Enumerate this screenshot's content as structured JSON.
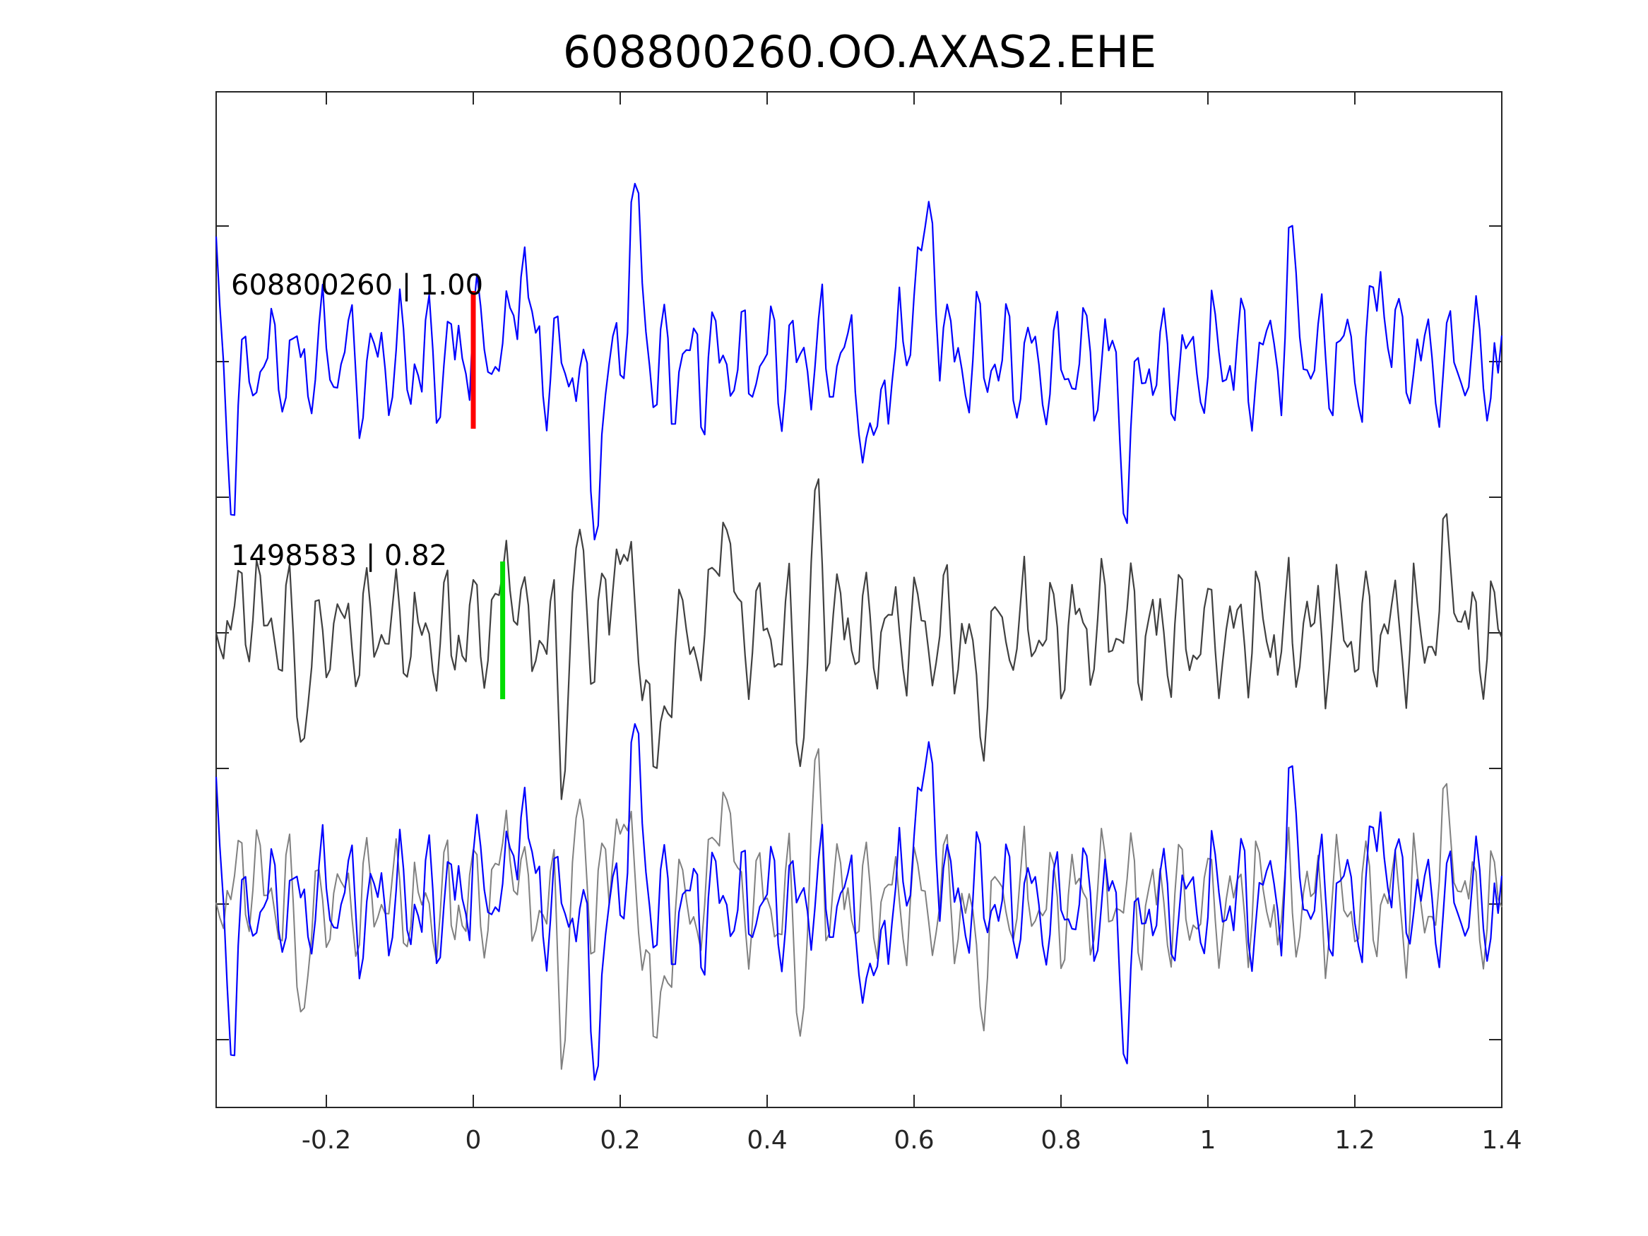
{
  "chart_data": {
    "type": "line",
    "title": "608800260.OO.AXAS2.EHE",
    "xlabel": "",
    "ylabel": "",
    "xlim": [
      -0.35,
      1.4
    ],
    "x_ticks": [
      -0.2,
      0,
      0.2,
      0.4,
      0.6,
      0.8,
      1,
      1.2,
      1.4
    ],
    "x_tick_labels": [
      "-0.2",
      "0",
      "0.2",
      "0.4",
      "0.6",
      "0.8",
      "1",
      "1.2",
      "1.4"
    ],
    "y_ticks_count": 7,
    "grid": false,
    "x_sampling": {
      "start": -0.35,
      "step": 0.005,
      "count": 351
    },
    "traces": [
      {
        "label": "608800260 | 1.00",
        "color": "#0000ff",
        "pick_time": 0.0,
        "pick_color": "#ff0000",
        "row": "top"
      },
      {
        "label": "1498583 | 0.82",
        "color": "#404040",
        "pick_time": 0.04,
        "pick_color": "#00dd00",
        "row": "middle"
      }
    ],
    "overlay": {
      "row": "bottom",
      "series_colors": [
        "#0000ff",
        "#808080"
      ]
    },
    "waveform_features": [
      {
        "series": 0,
        "peaks": [
          [
            -0.35,
            0.7
          ],
          [
            -0.33,
            -0.75
          ],
          [
            0.0,
            0.3
          ],
          [
            0.065,
            0.75
          ],
          [
            0.165,
            -1.05
          ],
          [
            0.22,
            1.15
          ],
          [
            0.26,
            -0.1
          ],
          [
            0.54,
            -0.8
          ],
          [
            0.605,
            0.75
          ],
          [
            0.625,
            0.75
          ],
          [
            0.89,
            -0.75
          ],
          [
            1.115,
            0.6
          ],
          [
            1.235,
            0.6
          ]
        ]
      },
      {
        "series": 1,
        "peaks": [
          [
            -0.35,
            0.2
          ],
          [
            -0.3,
            0.3
          ],
          [
            -0.23,
            -0.55
          ],
          [
            0.05,
            0.5
          ],
          [
            0.125,
            -0.8
          ],
          [
            0.14,
            0.65
          ],
          [
            0.2,
            0.7
          ],
          [
            0.25,
            -1.1
          ],
          [
            0.34,
            0.85
          ],
          [
            0.45,
            -0.8
          ],
          [
            0.465,
            0.85
          ],
          [
            0.69,
            -0.55
          ],
          [
            1.33,
            0.6
          ]
        ]
      }
    ]
  }
}
